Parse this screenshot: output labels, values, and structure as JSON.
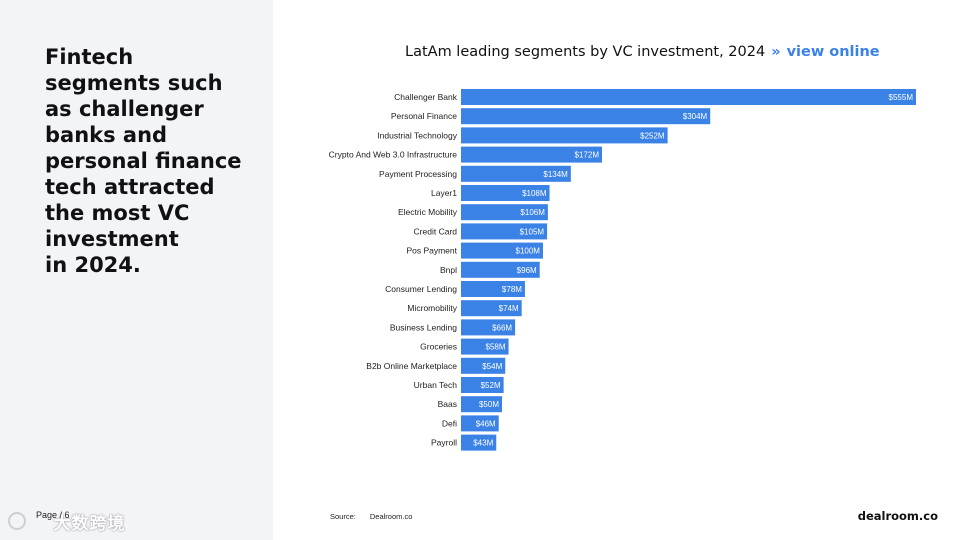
{
  "sidebar": {
    "headline": "Fintech\nsegments such\nas challenger\nbanks and\npersonal finance\ntech attracted\nthe most VC\ninvestment\nin 2024.",
    "page_label": "Page / 6",
    "watermark": "大数跨境"
  },
  "chart_header": {
    "title": "LatAm leading segments by VC investment, 2024",
    "separator": "»",
    "link_label": "view online"
  },
  "chart_data": {
    "type": "bar",
    "orientation": "horizontal",
    "categories": [
      "Challenger Bank",
      "Personal Finance",
      "Industrial Technology",
      "Crypto And Web 3.0 Infrastructure",
      "Payment Processing",
      "Layer1",
      "Electric Mobility",
      "Credit Card",
      "Pos Payment",
      "Bnpl",
      "Consumer Lending",
      "Micromobility",
      "Business Lending",
      "Groceries",
      "B2b Online Marketplace",
      "Urban Tech",
      "Baas",
      "Defi",
      "Payroll"
    ],
    "values": [
      555,
      304,
      252,
      172,
      134,
      108,
      106,
      105,
      100,
      96,
      78,
      74,
      66,
      58,
      54,
      52,
      50,
      46,
      43
    ],
    "value_labels": [
      "$555M",
      "$304M",
      "$252M",
      "$172M",
      "$134M",
      "$108M",
      "$106M",
      "$105M",
      "$100M",
      "$96M",
      "$78M",
      "$74M",
      "$66M",
      "$58M",
      "$54M",
      "$52M",
      "$50M",
      "$46M",
      "$43M"
    ],
    "bar_color": "#3b82e6",
    "grid": false,
    "xlim": [
      0,
      555
    ]
  },
  "footer": {
    "source_label": "Source:",
    "source_value": "Dealroom.co",
    "brand": "dealroom.co"
  }
}
